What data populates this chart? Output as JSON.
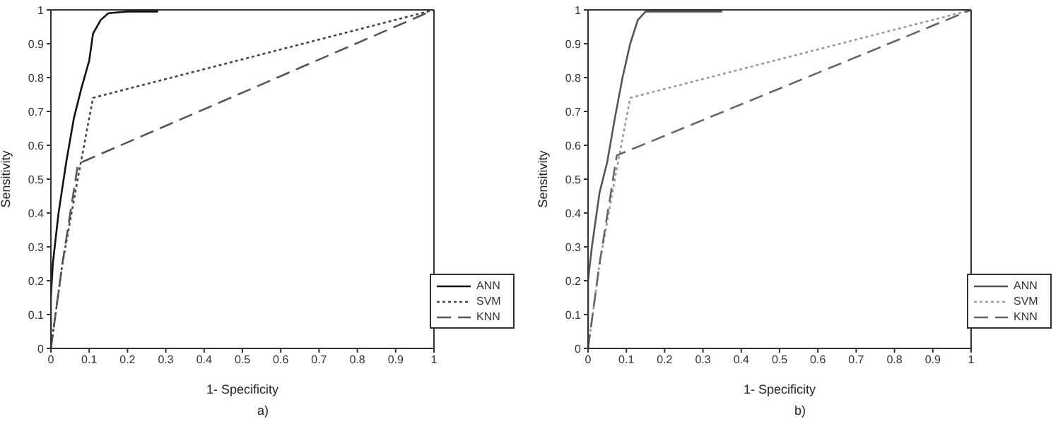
{
  "chart_data": [
    {
      "type": "line",
      "xlabel": "1- Specificity",
      "ylabel": "Sensitivity",
      "annotations": [
        "a)"
      ],
      "xlim": [
        0,
        1
      ],
      "ylim": [
        0,
        1
      ],
      "xticks": [
        0,
        0.1,
        0.2,
        0.3,
        0.4,
        0.5,
        0.6,
        0.7,
        0.8,
        0.9,
        1
      ],
      "yticks": [
        0,
        0.1,
        0.2,
        0.3,
        0.4,
        0.5,
        0.6,
        0.7,
        0.8,
        0.9,
        1
      ],
      "legend": "bottom right",
      "marker": "none",
      "series": [
        {
          "name": "ANN",
          "color": "#111111",
          "line_style": "solid",
          "x": [
            0,
            0,
            0.005,
            0.02,
            0.04,
            0.06,
            0.08,
            0.1,
            0.11,
            0.13,
            0.15,
            0.2,
            0.28
          ],
          "values": [
            0,
            0.15,
            0.25,
            0.4,
            0.55,
            0.68,
            0.77,
            0.85,
            0.93,
            0.97,
            0.99,
            0.995,
            0.995
          ]
        },
        {
          "name": "SVM",
          "color": "#444444",
          "line_style": "dotted",
          "x": [
            0,
            0.03,
            0.07,
            0.11,
            1
          ],
          "values": [
            0,
            0.25,
            0.5,
            0.74,
            1
          ]
        },
        {
          "name": "KNN",
          "color": "#555555",
          "line_style": "dashed",
          "x": [
            0,
            0.03,
            0.07,
            0.08,
            1
          ],
          "values": [
            0,
            0.25,
            0.54,
            0.55,
            1
          ]
        }
      ]
    },
    {
      "type": "line",
      "xlabel": "1- Specificity",
      "ylabel": "Sensitivity",
      "annotations": [
        "b)"
      ],
      "xlim": [
        0,
        1
      ],
      "ylim": [
        0,
        1
      ],
      "xticks": [
        0,
        0.1,
        0.2,
        0.3,
        0.4,
        0.5,
        0.6,
        0.7,
        0.8,
        0.9,
        1
      ],
      "yticks": [
        0,
        0.1,
        0.2,
        0.3,
        0.4,
        0.5,
        0.6,
        0.7,
        0.8,
        0.9,
        1
      ],
      "legend": "bottom right",
      "marker": "none",
      "series": [
        {
          "name": "ANN",
          "color": "#555555",
          "line_style": "solid",
          "x": [
            0,
            0,
            0.01,
            0.03,
            0.05,
            0.07,
            0.09,
            0.11,
            0.13,
            0.15,
            0.35
          ],
          "values": [
            0,
            0.2,
            0.3,
            0.46,
            0.55,
            0.68,
            0.8,
            0.9,
            0.97,
            0.995,
            0.995
          ]
        },
        {
          "name": "SVM",
          "color": "#999999",
          "line_style": "dotted",
          "x": [
            0,
            0.03,
            0.07,
            0.11,
            1
          ],
          "values": [
            0,
            0.25,
            0.5,
            0.74,
            1
          ]
        },
        {
          "name": "KNN",
          "color": "#666666",
          "line_style": "dashed",
          "x": [
            0,
            0.03,
            0.075,
            1
          ],
          "values": [
            0,
            0.25,
            0.57,
            1
          ]
        }
      ]
    }
  ]
}
